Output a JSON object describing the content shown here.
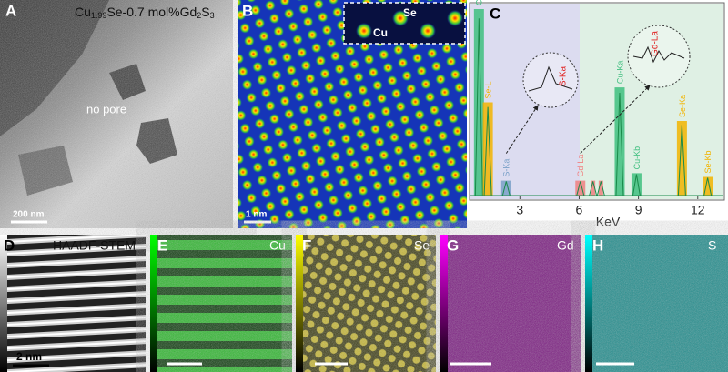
{
  "panels": {
    "a": {
      "letter": "A",
      "formula": [
        "Cu",
        "1.99",
        "Se-0.7 mol%Gd",
        "2",
        "S",
        "3"
      ],
      "note": "no pore",
      "scale": "200 nm"
    },
    "b": {
      "letter": "B",
      "inset_labels": [
        "Se",
        "Cu"
      ],
      "scale": "1 nm"
    },
    "d": {
      "letter": "D",
      "label": "HAADF-STEM",
      "scale": "2 nm"
    },
    "e": {
      "letter": "E",
      "label": "Cu"
    },
    "f": {
      "letter": "F",
      "label": "Se"
    },
    "g": {
      "letter": "G",
      "label": "Gd"
    },
    "h": {
      "letter": "H",
      "label": "S"
    }
  },
  "chart_data": {
    "type": "spectrum",
    "letter": "C",
    "x_label": "KeV",
    "xlim": [
      0.5,
      13.3
    ],
    "xticks": [
      3,
      6,
      9,
      12
    ],
    "peaks": [
      {
        "label": "Cu-L",
        "x": 0.93,
        "height": 1.0,
        "color": "#3fbf7f"
      },
      {
        "label": "Se-L",
        "x": 1.38,
        "height": 0.5,
        "color": "#f2b400"
      },
      {
        "label": "S-Ka",
        "x": 2.31,
        "height": 0.08,
        "color": "#7aa0c8"
      },
      {
        "label": "Gd-La",
        "x": 6.06,
        "height": 0.08,
        "color": "#f08080"
      },
      {
        "label": null,
        "x": 6.7,
        "height": 0.08,
        "color": "#f08080"
      },
      {
        "label": null,
        "x": 7.1,
        "height": 0.08,
        "color": "#f08080"
      },
      {
        "label": "Cu-Ka",
        "x": 8.05,
        "height": 0.58,
        "color": "#3fbf7f"
      },
      {
        "label": "Cu-Kb",
        "x": 8.9,
        "height": 0.12,
        "color": "#3fbf7f"
      },
      {
        "label": "Se-Ka",
        "x": 11.2,
        "height": 0.4,
        "color": "#f2b400"
      },
      {
        "label": "Se-Kb",
        "x": 12.5,
        "height": 0.1,
        "color": "#f2b400"
      }
    ],
    "zoom_labels": [
      "S-Ka",
      "Gd-La"
    ]
  }
}
